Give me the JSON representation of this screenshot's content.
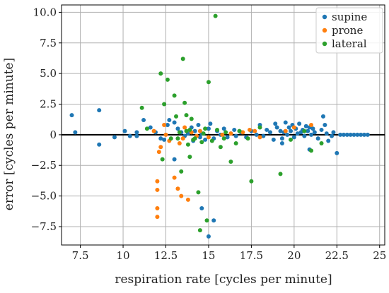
{
  "chart_data": {
    "type": "scatter",
    "xlabel": "respiration rate [cycles per minute]",
    "ylabel": "error [cycles per minute]",
    "xlim": [
      6.4,
      25.3
    ],
    "ylim": [
      -9.0,
      10.6
    ],
    "xticks": [
      7.5,
      10,
      12.5,
      15,
      17.5,
      20,
      22.5,
      25
    ],
    "xtick_labels": [
      "7.5",
      "10",
      "12.5",
      "15",
      "17.5",
      "20",
      "22.5",
      "25"
    ],
    "yticks": [
      -7.5,
      -5,
      -2.5,
      0,
      2.5,
      5,
      7.5,
      10
    ],
    "ytick_labels": [
      "−7.5",
      "−5.0",
      "−2.5",
      "0",
      "2.5",
      "5.0",
      "7.5",
      "10.0"
    ],
    "grid": true,
    "zero_line": true,
    "legend_position": "top-right",
    "series": [
      {
        "name": "supine",
        "color": "#1f77b4",
        "points": [
          [
            7.0,
            1.6
          ],
          [
            7.2,
            0.2
          ],
          [
            8.6,
            2.0
          ],
          [
            8.6,
            -0.8
          ],
          [
            9.5,
            -0.2
          ],
          [
            10.1,
            0.3
          ],
          [
            10.4,
            -0.1
          ],
          [
            10.8,
            0.2
          ],
          [
            11.2,
            1.2
          ],
          [
            11.6,
            0.6
          ],
          [
            11.9,
            0.2
          ],
          [
            12.2,
            -0.3
          ],
          [
            12.6,
            0.8
          ],
          [
            12.7,
            1.2
          ],
          [
            13.0,
            1.0
          ],
          [
            13.2,
            0.5
          ],
          [
            13.4,
            0.2
          ],
          [
            13.6,
            -0.1
          ],
          [
            13.8,
            0.1
          ],
          [
            14.0,
            0.6
          ],
          [
            14.1,
            -0.5
          ],
          [
            14.2,
            0.3
          ],
          [
            14.4,
            0.8
          ],
          [
            14.5,
            -0.2
          ],
          [
            14.6,
            0.1
          ],
          [
            14.8,
            -0.4
          ],
          [
            15.0,
            0.5
          ],
          [
            15.1,
            0.9
          ],
          [
            15.3,
            -0.3
          ],
          [
            15.5,
            0.3
          ],
          [
            15.7,
            0.0
          ],
          [
            15.9,
            0.5
          ],
          [
            16.1,
            -0.2
          ],
          [
            16.3,
            0.1
          ],
          [
            16.6,
            -0.1
          ],
          [
            16.9,
            0.2
          ],
          [
            17.2,
            -0.2
          ],
          [
            17.5,
            0.3
          ],
          [
            17.8,
            0.0
          ],
          [
            18.0,
            0.8
          ],
          [
            18.2,
            -0.1
          ],
          [
            18.4,
            0.4
          ],
          [
            18.6,
            0.2
          ],
          [
            18.8,
            -0.4
          ],
          [
            19.0,
            0.6
          ],
          [
            19.2,
            0.3
          ],
          [
            19.3,
            -0.3
          ],
          [
            19.4,
            0.2
          ],
          [
            19.5,
            1.0
          ],
          [
            19.6,
            0.0
          ],
          [
            19.7,
            0.6
          ],
          [
            19.8,
            0.3
          ],
          [
            19.9,
            0.8
          ],
          [
            20.0,
            -0.2
          ],
          [
            20.1,
            0.5
          ],
          [
            20.2,
            0.1
          ],
          [
            20.3,
            0.9
          ],
          [
            20.4,
            0.2
          ],
          [
            20.5,
            0.4
          ],
          [
            20.6,
            -0.1
          ],
          [
            20.7,
            0.7
          ],
          [
            20.8,
            0.3
          ],
          [
            20.9,
            0.6
          ],
          [
            21.0,
            0.0
          ],
          [
            21.1,
            0.5
          ],
          [
            21.2,
            0.2
          ],
          [
            21.4,
            -0.3
          ],
          [
            21.6,
            0.4
          ],
          [
            21.7,
            1.5
          ],
          [
            21.8,
            0.8
          ],
          [
            21.9,
            0.1
          ],
          [
            22.0,
            -0.5
          ],
          [
            22.2,
            -0.1
          ],
          [
            22.3,
            0.2
          ],
          [
            22.5,
            -1.5
          ],
          [
            22.7,
            0.0
          ],
          [
            22.9,
            0.0
          ],
          [
            23.1,
            0.0
          ],
          [
            23.3,
            0.0
          ],
          [
            23.5,
            0.0
          ],
          [
            23.7,
            0.0
          ],
          [
            23.9,
            0.0
          ],
          [
            24.1,
            0.0
          ],
          [
            24.3,
            0.0
          ],
          [
            19.3,
            -0.7
          ],
          [
            20.9,
            -1.2
          ],
          [
            12.4,
            -0.4
          ],
          [
            13.0,
            -2.0
          ],
          [
            14.6,
            -6.0
          ],
          [
            15.0,
            -8.3
          ],
          [
            15.3,
            -7.0
          ],
          [
            10.8,
            -0.1
          ],
          [
            16.5,
            0.4
          ],
          [
            18.9,
            0.9
          ]
        ]
      },
      {
        "name": "prone",
        "color": "#ff7f0e",
        "points": [
          [
            11.8,
            0.3
          ],
          [
            12.0,
            -3.8
          ],
          [
            12.0,
            -4.5
          ],
          [
            12.0,
            -6.0
          ],
          [
            12.0,
            -6.7
          ],
          [
            12.1,
            -1.4
          ],
          [
            12.2,
            -1.0
          ],
          [
            12.5,
            0.0
          ],
          [
            12.7,
            -0.5
          ],
          [
            13.0,
            -3.5
          ],
          [
            13.2,
            -4.4
          ],
          [
            13.4,
            -5.0
          ],
          [
            13.5,
            -0.3
          ],
          [
            13.6,
            0.6
          ],
          [
            13.8,
            -5.3
          ],
          [
            14.0,
            0.2
          ],
          [
            14.3,
            -0.1
          ],
          [
            14.5,
            0.3
          ],
          [
            15.0,
            -0.2
          ],
          [
            15.8,
            0.0
          ],
          [
            16.3,
            0.1
          ],
          [
            17.0,
            0.2
          ],
          [
            17.4,
            0.4
          ],
          [
            17.7,
            0.3
          ],
          [
            18.0,
            -0.2
          ],
          [
            19.5,
            0.3
          ],
          [
            20.0,
            0.6
          ],
          [
            21.0,
            0.8
          ],
          [
            12.4,
            0.8
          ],
          [
            13.3,
            -0.7
          ]
        ]
      },
      {
        "name": "lateral",
        "color": "#2ca02c",
        "points": [
          [
            11.1,
            2.2
          ],
          [
            11.4,
            0.5
          ],
          [
            12.2,
            5.0
          ],
          [
            12.4,
            2.5
          ],
          [
            12.6,
            4.5
          ],
          [
            13.0,
            3.2
          ],
          [
            13.1,
            1.5
          ],
          [
            13.5,
            6.2
          ],
          [
            13.6,
            2.6
          ],
          [
            13.7,
            1.6
          ],
          [
            13.7,
            0.3
          ],
          [
            13.8,
            -0.8
          ],
          [
            13.9,
            -1.8
          ],
          [
            14.0,
            1.3
          ],
          [
            14.2,
            -0.3
          ],
          [
            14.4,
            -4.7
          ],
          [
            14.5,
            -7.8
          ],
          [
            14.6,
            -0.6
          ],
          [
            14.9,
            -7.0
          ],
          [
            15.0,
            4.3
          ],
          [
            15.4,
            9.7
          ],
          [
            15.5,
            0.4
          ],
          [
            15.7,
            -1.0
          ],
          [
            16.0,
            0.2
          ],
          [
            16.3,
            -2.2
          ],
          [
            16.6,
            -0.7
          ],
          [
            17.3,
            -0.3
          ],
          [
            17.5,
            -3.8
          ],
          [
            18.0,
            0.6
          ],
          [
            19.2,
            -3.2
          ],
          [
            19.8,
            -0.4
          ],
          [
            21.0,
            -1.3
          ],
          [
            21.6,
            -0.7
          ],
          [
            12.3,
            -2.0
          ],
          [
            12.8,
            -0.3
          ],
          [
            13.3,
            0.2
          ],
          [
            14.8,
            0.5
          ],
          [
            15.2,
            -0.5
          ],
          [
            13.4,
            -3.0
          ],
          [
            14.1,
            -0.4
          ],
          [
            14.7,
            0.1
          ],
          [
            15.9,
            -0.3
          ],
          [
            16.8,
            0.3
          ],
          [
            20.6,
            0.3
          ],
          [
            13.2,
            -0.3
          ],
          [
            13.9,
            0.4
          ]
        ]
      }
    ]
  }
}
